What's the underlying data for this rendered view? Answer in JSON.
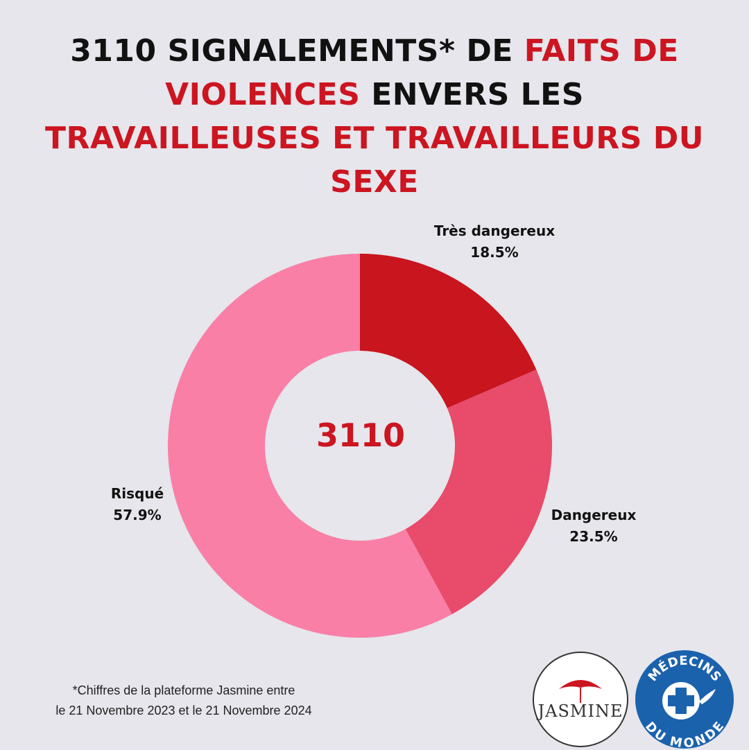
{
  "title": {
    "line1_a": "3110 SIGNALEMENTS* DE ",
    "line1_b": "FAITS DE",
    "line2_a": "VIOLENCES",
    "line2_b": " ENVERS LES",
    "line3": "TRAVAILLEUSES ET TRAVAILLEURS DU",
    "line4": "SEXE"
  },
  "chart_data": {
    "type": "pie",
    "donut": true,
    "center_label": "3110",
    "slices": [
      {
        "label": "Très dangereux",
        "value": 18.5,
        "value_label": "18.5%",
        "color": "#c8151e"
      },
      {
        "label": "Dangereux",
        "value": 23.5,
        "value_label": "23.5%",
        "color": "#e94b6a"
      },
      {
        "label": "Risqué",
        "value": 57.9,
        "value_label": "57.9%",
        "color": "#f97fa7"
      }
    ]
  },
  "footnote": {
    "line1": "*Chiffres de la plateforme Jasmine entre",
    "line2": "le 21 Novembre 2023 et le 21 Novembre 2024"
  },
  "logos": {
    "jasmine": "JASMINE",
    "mdm_top": "MÉDECINS",
    "mdm_bottom": "DU MONDE"
  },
  "colors": {
    "accent_red": "#cc1520",
    "background": "#e6e6ec",
    "mdm_blue": "#1b62ad"
  }
}
